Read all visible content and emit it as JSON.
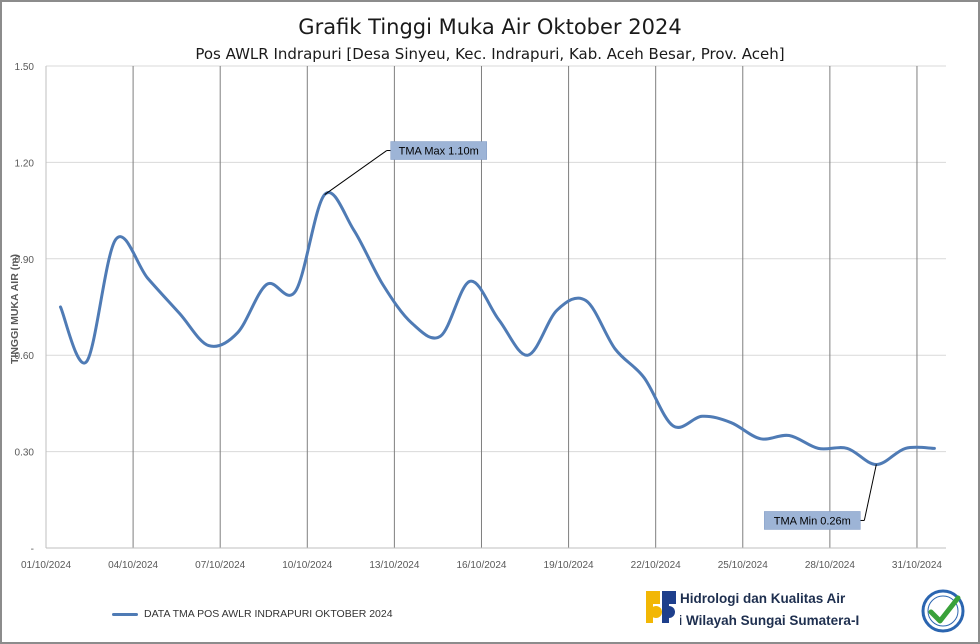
{
  "chart_data": {
    "type": "line",
    "title": "Grafik Tinggi Muka Air Oktober 2024",
    "subtitle": "Pos AWLR Indrapuri [Desa Sinyeu, Kec. Indrapuri, Kab. Aceh Besar, Prov. Aceh]",
    "ylabel": "TINGGI MUKA AIR (m)",
    "ylim": [
      0,
      1.5
    ],
    "yticks": [
      "-",
      "0.30",
      "0.60",
      "0.90",
      "1.20",
      "1.50"
    ],
    "ytick_values": [
      0,
      0.3,
      0.6,
      0.9,
      1.2,
      1.5
    ],
    "xlim": [
      1,
      32
    ],
    "xticks": [
      "01/10/2024",
      "04/10/2024",
      "07/10/2024",
      "10/10/2024",
      "13/10/2024",
      "16/10/2024",
      "19/10/2024",
      "22/10/2024",
      "25/10/2024",
      "28/10/2024",
      "31/10/2024"
    ],
    "xtick_values": [
      1,
      4,
      7,
      10,
      13,
      16,
      19,
      22,
      25,
      28,
      31
    ],
    "grid": "horizontal major, vertical every 3 days",
    "legend_position": "bottom-left",
    "series": [
      {
        "name": "DATA TMA POS AWLR INDRAPURI OKTOBER 2024",
        "color": "#4f7bb5",
        "x": [
          1.5,
          2.4,
          3.4,
          4.5,
          5.6,
          6.6,
          7.6,
          8.6,
          9.6,
          10.6,
          11.6,
          12.6,
          13.6,
          14.6,
          15.6,
          16.6,
          17.6,
          18.6,
          19.6,
          20.6,
          21.6,
          22.6,
          23.6,
          24.6,
          25.6,
          26.6,
          27.6,
          28.6,
          29.6,
          30.6,
          31.6
        ],
        "y": [
          0.75,
          0.58,
          0.96,
          0.84,
          0.73,
          0.63,
          0.67,
          0.82,
          0.8,
          1.1,
          0.99,
          0.82,
          0.7,
          0.66,
          0.83,
          0.71,
          0.6,
          0.74,
          0.77,
          0.62,
          0.53,
          0.38,
          0.41,
          0.39,
          0.34,
          0.35,
          0.31,
          0.31,
          0.26,
          0.31,
          0.31
        ]
      }
    ],
    "annotations": [
      {
        "text": "TMA Max 1.10m",
        "x": 10.6,
        "y": 1.1
      },
      {
        "text": "TMA Min 0.26m",
        "x": 29.6,
        "y": 0.26
      }
    ]
  },
  "footer": {
    "org_line1": "Unit Hidrologi dan Kualitas Air",
    "org_line2": "Balai Wilayah Sungai Sumatera-I"
  }
}
